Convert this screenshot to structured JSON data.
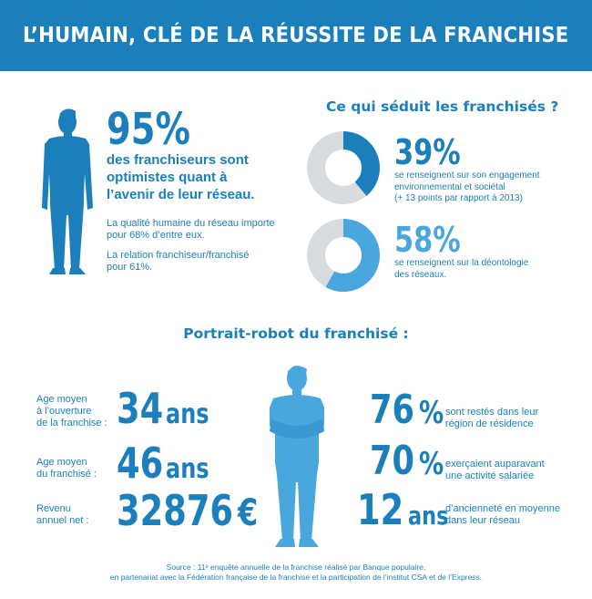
{
  "header": {
    "title": "L’HUMAIN, CLÉ DE LA RÉUSSITE DE LA FRANCHISE"
  },
  "optimism": {
    "percent": "95%",
    "lines": [
      "des franchiseurs sont",
      "optimistes quant à",
      "l’avenir de leur réseau."
    ],
    "note1": [
      "La qualité humaine du réseau importe",
      "pour 68% d’entre eux."
    ],
    "note2": [
      "La relation franchiseur/franchisé",
      "pour 61%."
    ]
  },
  "seduit": {
    "title": "Ce qui séduit les franchisés ?",
    "items": [
      {
        "percent": "39%",
        "value": 39,
        "lines": [
          "se renseignent sur son engagement",
          "environnemental et sociétal",
          "(+ 13 points par rapport à 2013)"
        ],
        "color": "#1b7fbb"
      },
      {
        "percent": "58%",
        "value": 58,
        "lines": [
          "se renseignent sur la déontologie",
          "des réseaux."
        ],
        "color": "#4aa7dd"
      }
    ],
    "track_color": "#d9dcdf"
  },
  "portrait": {
    "title": "Portrait-robot du franchisé :",
    "left": [
      {
        "label": [
          "Age moyen",
          "à l’ouverture",
          "de la franchise :"
        ],
        "number": "34",
        "unit": "ans"
      },
      {
        "label": [
          "Age moyen",
          "du franchisé :"
        ],
        "number": "46",
        "unit": "ans"
      },
      {
        "label": [
          "Revenu",
          "annuel net :"
        ],
        "number": "32876",
        "unit": "€"
      }
    ],
    "right": [
      {
        "number": "76",
        "unit": "%",
        "text": [
          "sont restés dans leur",
          "région de résidence"
        ]
      },
      {
        "number": "70",
        "unit": "%",
        "text": [
          "exerçaient auparavant",
          "une activité salariée"
        ]
      },
      {
        "number": "12",
        "unit": "ans",
        "text": [
          "d’ancienneté en moyenne",
          "dans leur réseau"
        ]
      }
    ]
  },
  "source": {
    "line1": "Source : 11ᵉ enquête annuelle de la franchise réalisé par Banque populaire,",
    "line2": "en partenariat avec la Fédération française de la franchise et la participation de l’institut CSA et de l’Express."
  }
}
